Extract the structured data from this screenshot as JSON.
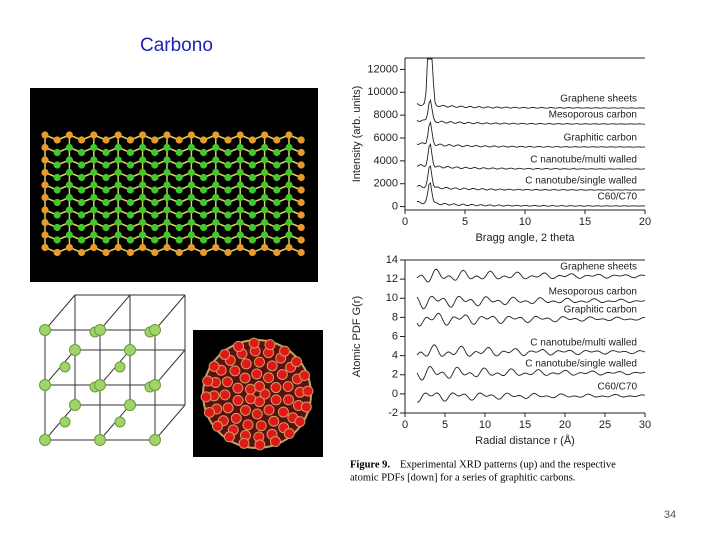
{
  "title": "Carbono",
  "xrd": {
    "ylabel": "Intensity (arb. units)",
    "xlabel": "Bragg angle, 2 theta",
    "xlim": [
      0,
      20
    ],
    "xticks": [
      0,
      5,
      10,
      15,
      20
    ],
    "ylim": [
      -300,
      13000
    ],
    "yticks": [
      0,
      2000,
      4000,
      6000,
      8000,
      10000,
      12000
    ],
    "labels": [
      "Graphene sheets",
      "Mesoporous carbon",
      "Graphitic carbon",
      "C nanotube/multi walled",
      "C nanotube/single walled",
      "C60/C70"
    ]
  },
  "pdf": {
    "ylabel": "Atomic PDF G(r)",
    "xlabel": "Radial distance r (Å)",
    "xlim": [
      0,
      30
    ],
    "xticks": [
      0,
      5,
      10,
      15,
      20,
      25,
      30
    ],
    "ylim": [
      -2,
      14
    ],
    "yticks": [
      -2,
      0,
      2,
      4,
      6,
      8,
      10,
      12,
      14
    ],
    "labels": [
      "Graphene sheets",
      "Mesoporous carbon",
      "Graphitic carbon",
      "C nanotube/multi walled",
      "C nanotube/single walled",
      "C60/C70"
    ]
  },
  "caption": {
    "label": "Figure 9.",
    "line1": "Experimental XRD patterns (up) and the respective",
    "line2": "atomic PDFs [down] for a series of graphitic carbons."
  },
  "page_number": "34"
}
